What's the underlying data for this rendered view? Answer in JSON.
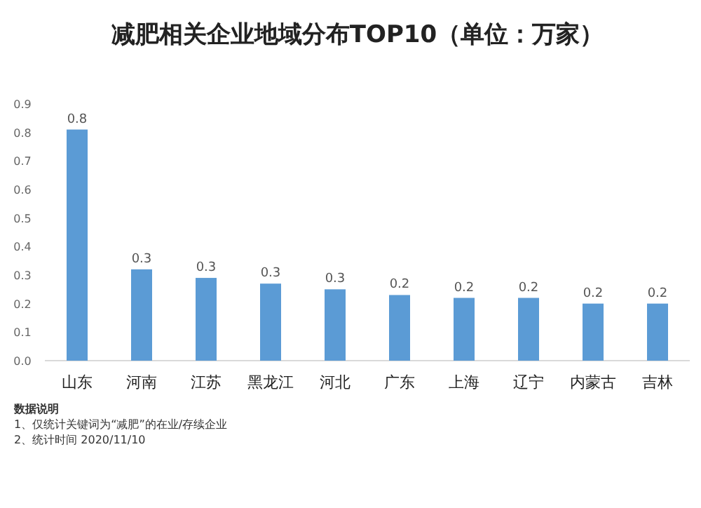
{
  "chart_data": {
    "type": "bar",
    "title": "减肥相关企业地域分布TOP10（单位：万家）",
    "categories": [
      "山东",
      "河南",
      "江苏",
      "黑龙江",
      "河北",
      "广东",
      "上海",
      "辽宁",
      "内蒙古",
      "吉林"
    ],
    "values": [
      0.81,
      0.32,
      0.29,
      0.27,
      0.25,
      0.23,
      0.22,
      0.22,
      0.2,
      0.2
    ],
    "value_labels": [
      "0.8",
      "0.3",
      "0.3",
      "0.3",
      "0.3",
      "0.2",
      "0.2",
      "0.2",
      "0.2",
      "0.2"
    ],
    "color": "#5b9bd5",
    "ylim": [
      0,
      0.9
    ],
    "yticks": [
      {
        "value": 0,
        "label": "0.0"
      },
      0.1,
      0.2,
      0.3,
      0.4,
      0.5,
      0.6,
      0.7,
      0.8,
      0.9
    ],
    "grid": false,
    "annotations": [
      "数据说明",
      "1、仅统计关键词为“减肥”的在业/存续企业",
      "2、统计时间 2020/11/10"
    ]
  }
}
